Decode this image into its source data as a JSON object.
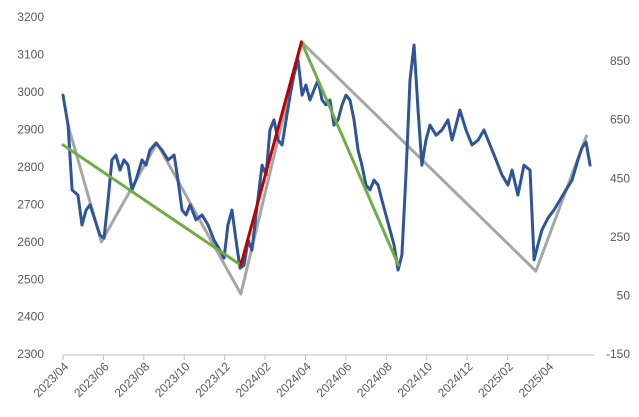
{
  "chart_data": {
    "type": "line",
    "xlim": [
      0,
      26.3
    ],
    "xticks": [
      {
        "value": 0,
        "label": "2023/04"
      },
      {
        "value": 2,
        "label": "2023/06"
      },
      {
        "value": 4,
        "label": "2023/08"
      },
      {
        "value": 6,
        "label": "2023/10"
      },
      {
        "value": 8,
        "label": "2023/12"
      },
      {
        "value": 10,
        "label": "2024/02"
      },
      {
        "value": 12,
        "label": "2024/04"
      },
      {
        "value": 14,
        "label": "2024/06"
      },
      {
        "value": 16,
        "label": "2024/08"
      },
      {
        "value": 18,
        "label": "2024/10"
      },
      {
        "value": 20,
        "label": "2024/12"
      },
      {
        "value": 22,
        "label": "2025/02"
      },
      {
        "value": 24,
        "label": "2025/04"
      }
    ],
    "ylim": [
      2300,
      3200
    ],
    "yticks": [
      2300,
      2400,
      2500,
      2600,
      2700,
      2800,
      2900,
      3000,
      3100,
      3200
    ],
    "y2lim": [
      -150,
      1000
    ],
    "y2ticks": [
      -150,
      50,
      250,
      450,
      650,
      850
    ],
    "grid": false,
    "series": [
      {
        "color": "#a6a6a6",
        "axis": "y",
        "x": [
          0.25,
          1.9,
          4.65,
          8.8,
          11.8,
          23.4,
          25.9
        ],
        "values": [
          2914,
          2602,
          2866,
          2463,
          3136,
          2524,
          2885
        ]
      },
      {
        "color": "#2e5597",
        "axis": "y",
        "x": [
          0,
          0.25,
          0.45,
          0.74,
          0.94,
          1.14,
          1.34,
          1.58,
          1.83,
          2.03,
          2.23,
          2.42,
          2.62,
          2.82,
          3.02,
          3.22,
          3.41,
          3.61,
          3.91,
          4.11,
          4.3,
          4.6,
          4.9,
          5.2,
          5.5,
          5.69,
          5.89,
          6.09,
          6.29,
          6.58,
          6.88,
          7.18,
          7.47,
          7.77,
          7.97,
          8.16,
          8.36,
          8.56,
          8.76,
          8.96,
          9.16,
          9.35,
          9.55,
          9.85,
          10.05,
          10.24,
          10.44,
          10.64,
          10.84,
          11.04,
          11.24,
          11.43,
          11.63,
          11.83,
          12.02,
          12.22,
          12.42,
          12.62,
          12.82,
          13.01,
          13.21,
          13.41,
          13.61,
          13.81,
          14.0,
          14.2,
          14.4,
          14.6,
          14.79,
          14.99,
          15.19,
          15.39,
          15.59,
          15.78,
          15.98,
          16.18,
          16.38,
          16.58,
          16.77,
          16.97,
          17.17,
          17.37,
          17.57,
          17.76,
          17.96,
          18.16,
          18.46,
          18.75,
          19.05,
          19.25,
          19.45,
          19.64,
          19.94,
          20.24,
          20.54,
          20.83,
          21.13,
          21.43,
          21.72,
          22.02,
          22.22,
          22.51,
          22.81,
          23.11,
          23.31,
          23.5,
          23.7,
          24.0,
          24.29,
          24.59,
          24.89,
          25.19,
          25.48,
          25.68,
          25.88,
          26.08
        ],
        "values": [
          2994,
          2914,
          2741,
          2727,
          2647,
          2687,
          2701,
          2661,
          2620,
          2612,
          2714,
          2821,
          2834,
          2794,
          2821,
          2807,
          2741,
          2767,
          2821,
          2807,
          2847,
          2866,
          2847,
          2821,
          2834,
          2767,
          2687,
          2674,
          2701,
          2661,
          2674,
          2647,
          2607,
          2580,
          2559,
          2647,
          2687,
          2607,
          2532,
          2540,
          2607,
          2580,
          2674,
          2807,
          2781,
          2901,
          2928,
          2874,
          2861,
          2928,
          2994,
          3048,
          3088,
          2994,
          3021,
          2981,
          3008,
          3034,
          2981,
          2968,
          2981,
          2914,
          2928,
          2968,
          2994,
          2981,
          2928,
          2847,
          2807,
          2754,
          2741,
          2767,
          2754,
          2714,
          2674,
          2634,
          2594,
          2527,
          2567,
          2781,
          3034,
          3128,
          2954,
          2807,
          2874,
          2914,
          2887,
          2901,
          2928,
          2874,
          2914,
          2954,
          2901,
          2861,
          2874,
          2901,
          2861,
          2821,
          2781,
          2754,
          2794,
          2727,
          2807,
          2794,
          2554,
          2594,
          2634,
          2666,
          2687,
          2714,
          2741,
          2767,
          2821,
          2853,
          2869,
          2807
        ]
      },
      {
        "color": "#70ad47",
        "axis": "y",
        "x": [
          0,
          8.8
        ],
        "values": [
          2861,
          2540
        ]
      },
      {
        "color": "#70ad47",
        "axis": "y",
        "x": [
          11.8,
          16.6
        ],
        "values": [
          3136,
          2540
        ]
      },
      {
        "color": "#c00000",
        "axis": "y",
        "x": [
          8.8,
          11.8
        ],
        "values": [
          2540,
          3136
        ]
      }
    ]
  }
}
